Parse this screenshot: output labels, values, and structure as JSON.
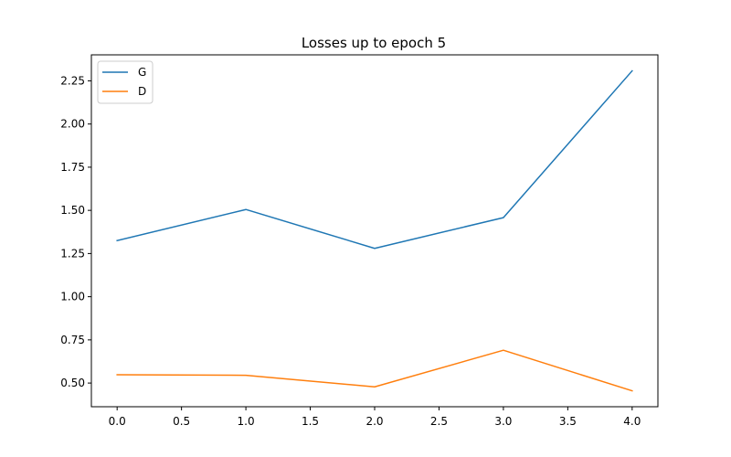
{
  "chart_data": {
    "type": "line",
    "title": "Losses up to epoch 5",
    "xlabel": "",
    "ylabel": "",
    "x": [
      0,
      1,
      2,
      3,
      4
    ],
    "series": [
      {
        "name": "G",
        "values": [
          1.325,
          1.505,
          1.28,
          1.458,
          2.308
        ],
        "color": "#1f77b4"
      },
      {
        "name": "D",
        "values": [
          0.548,
          0.545,
          0.478,
          0.69,
          0.455
        ],
        "color": "#ff7f0e"
      }
    ],
    "xlim": [
      -0.2,
      4.2
    ],
    "ylim": [
      0.3629,
      2.4006
    ],
    "xticks": [
      "0.0",
      "0.5",
      "1.0",
      "1.5",
      "2.0",
      "2.5",
      "3.0",
      "3.5",
      "4.0"
    ],
    "yticks": [
      "0.50",
      "0.75",
      "1.00",
      "1.25",
      "1.50",
      "1.75",
      "2.00",
      "2.25"
    ],
    "grid": false,
    "legend_position": "top-left"
  }
}
